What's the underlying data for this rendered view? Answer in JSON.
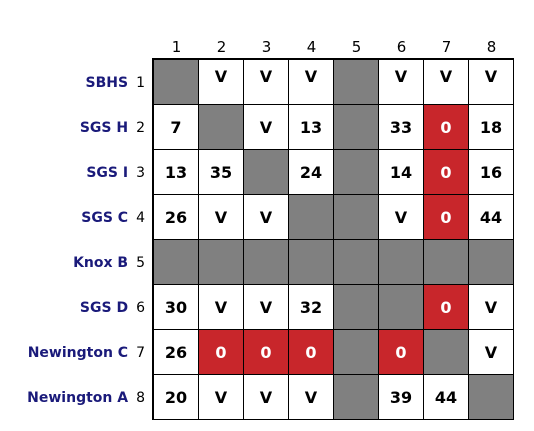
{
  "columns": [
    "1",
    "2",
    "3",
    "4",
    "5",
    "6",
    "7",
    "8"
  ],
  "rows": [
    {
      "name": "SBHS",
      "num": "1",
      "cells": [
        "",
        "V",
        "V",
        "V",
        "",
        "V",
        "V",
        "V"
      ]
    },
    {
      "name": "SGS H",
      "num": "2",
      "cells": [
        "7",
        "",
        "V",
        "13",
        "",
        "33",
        "0",
        "18"
      ]
    },
    {
      "name": "SGS I",
      "num": "3",
      "cells": [
        "13",
        "35",
        "",
        "24",
        "",
        "14",
        "0",
        "16"
      ]
    },
    {
      "name": "SGS C",
      "num": "4",
      "cells": [
        "26",
        "V",
        "V",
        "",
        "",
        "V",
        "0",
        "44"
      ]
    },
    {
      "name": "Knox B",
      "num": "5",
      "cells": [
        "",
        "",
        "",
        "",
        "",
        "",
        "",
        ""
      ]
    },
    {
      "name": "SGS D",
      "num": "6",
      "cells": [
        "30",
        "V",
        "V",
        "32",
        "",
        "",
        "0",
        "V"
      ]
    },
    {
      "name": "Newington C",
      "num": "7",
      "cells": [
        "26",
        "0",
        "0",
        "0",
        "",
        "0",
        "",
        "V"
      ]
    },
    {
      "name": "Newington A",
      "num": "8",
      "cells": [
        "20",
        "V",
        "V",
        "V",
        "",
        "39",
        "44",
        ""
      ]
    }
  ],
  "cell_states": [
    [
      "gray",
      "white",
      "white",
      "white",
      "gray",
      "white",
      "white",
      "white"
    ],
    [
      "white",
      "gray",
      "white",
      "white",
      "gray",
      "white",
      "red",
      "white"
    ],
    [
      "white",
      "white",
      "gray",
      "white",
      "gray",
      "white",
      "red",
      "white"
    ],
    [
      "white",
      "white",
      "white",
      "gray",
      "gray",
      "white",
      "red",
      "white"
    ],
    [
      "gray",
      "gray",
      "gray",
      "gray",
      "gray",
      "gray",
      "gray",
      "gray"
    ],
    [
      "white",
      "white",
      "white",
      "white",
      "gray",
      "gray",
      "red",
      "white"
    ],
    [
      "white",
      "red",
      "red",
      "red",
      "gray",
      "red",
      "gray",
      "white"
    ],
    [
      "white",
      "white",
      "white",
      "white",
      "gray",
      "white",
      "white",
      "gray"
    ]
  ],
  "colors": {
    "gray": "#808080",
    "white": "#ffffff",
    "red": "#c8262b",
    "team_name": "#1a1a7a"
  }
}
